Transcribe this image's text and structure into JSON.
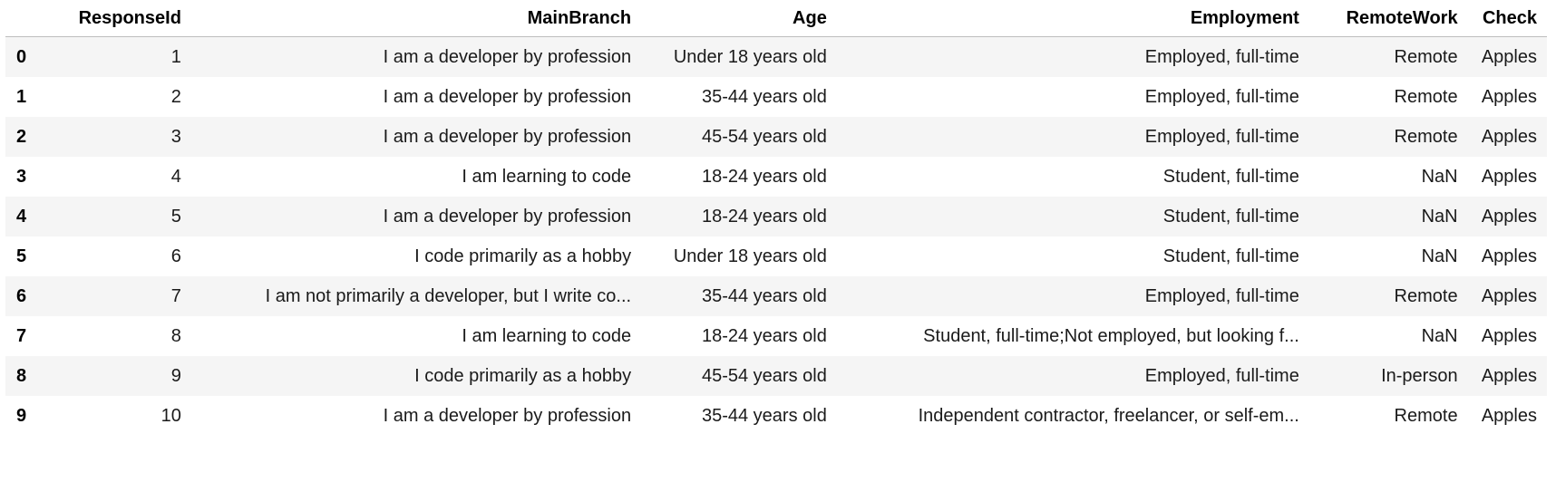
{
  "dataframe": {
    "index_header": "",
    "columns": [
      "ResponseId",
      "MainBranch",
      "Age",
      "Employment",
      "RemoteWork",
      "Check"
    ],
    "rows": [
      {
        "index": "0",
        "cells": [
          "1",
          "I am a developer by profession",
          "Under 18 years old",
          "Employed, full-time",
          "Remote",
          "Apples"
        ]
      },
      {
        "index": "1",
        "cells": [
          "2",
          "I am a developer by profession",
          "35-44 years old",
          "Employed, full-time",
          "Remote",
          "Apples"
        ]
      },
      {
        "index": "2",
        "cells": [
          "3",
          "I am a developer by profession",
          "45-54 years old",
          "Employed, full-time",
          "Remote",
          "Apples"
        ]
      },
      {
        "index": "3",
        "cells": [
          "4",
          "I am learning to code",
          "18-24 years old",
          "Student, full-time",
          "NaN",
          "Apples"
        ]
      },
      {
        "index": "4",
        "cells": [
          "5",
          "I am a developer by profession",
          "18-24 years old",
          "Student, full-time",
          "NaN",
          "Apples"
        ]
      },
      {
        "index": "5",
        "cells": [
          "6",
          "I code primarily as a hobby",
          "Under 18 years old",
          "Student, full-time",
          "NaN",
          "Apples"
        ]
      },
      {
        "index": "6",
        "cells": [
          "7",
          "I am not primarily a developer, but I write co...",
          "35-44 years old",
          "Employed, full-time",
          "Remote",
          "Apples"
        ]
      },
      {
        "index": "7",
        "cells": [
          "8",
          "I am learning to code",
          "18-24 years old",
          "Student, full-time;Not employed, but looking f...",
          "NaN",
          "Apples"
        ]
      },
      {
        "index": "8",
        "cells": [
          "9",
          "I code primarily as a hobby",
          "45-54 years old",
          "Employed, full-time",
          "In-person",
          "Apples"
        ]
      },
      {
        "index": "9",
        "cells": [
          "10",
          "I am a developer by profession",
          "35-44 years old",
          "Independent contractor, freelancer, or self-em...",
          "Remote",
          "Apples"
        ]
      }
    ]
  }
}
